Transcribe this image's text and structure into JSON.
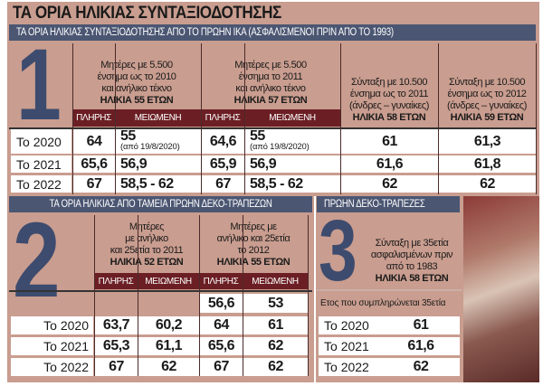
{
  "title": "ΤΑ ΟΡΙΑ ΗΛΙΚΙΑΣ ΣΥΝΤΑΞΙΟΔΟΤΗΣΗΣ",
  "colors": {
    "background": "#c99d8f",
    "navy": "#4b5672",
    "maroon": "#6b1f24",
    "big_number": "#3d4b6e"
  },
  "section1": {
    "heading": "ΤΑ ΟΡΙΑ ΗΛΙΚΙΑΣ ΣΥΝΤΑΞΙΟΔΟΤΗΣΗΣ ΑΠΟ ΤΟ ΠΡΩΗΝ ΙΚΑ (ΑΣΦΑΛΙΣΜΕΝΟΙ ΠΡΙΝ ΑΠΟ ΤΟ 1993)",
    "number": "1",
    "groups": [
      {
        "lines": [
          "Μητέρες με 5.500",
          "ένσημα ως το 2010",
          "και ανήλικο τέκνο"
        ],
        "age": "ΗΛΙΚΙΑ 55 ΕΤΩΝ"
      },
      {
        "lines": [
          "Μητέρες με 5.500",
          "ένσημα το 2011",
          "και ανήλικο τέκνο"
        ],
        "age": "ΗΛΙΚΙΑ 57 ΕΤΩΝ"
      },
      {
        "lines": [
          "Σύνταξη με 10.500",
          "ένσημα ως το 2011",
          "(άνδρες – γυναίκες)"
        ],
        "age": "ΗΛΙΚΙΑ 58 ΕΤΩΝ"
      },
      {
        "lines": [
          "Σύνταξη με 10.500",
          "ένσημα ως το 2012",
          "(άνδρες – γυναίκες)"
        ],
        "age": "ΗΛΙΚΙΑ 59 ΕΤΩΝ"
      }
    ],
    "subheaders": [
      "ΠΛΗΡΗΣ",
      "ΜΕΙΩΜΕΝΗ",
      "ΠΛΗΡΗΣ",
      "ΜΕΙΩΜΕΝΗ"
    ],
    "rows": [
      {
        "label": "Το 2020",
        "values": [
          "64",
          "55",
          "64,6",
          "55",
          "61",
          "61,3"
        ],
        "notes": [
          "",
          "(από 19/8/2020)",
          "",
          "(από 19/8/2020)",
          "",
          ""
        ]
      },
      {
        "label": "Το 2021",
        "values": [
          "65,6",
          "56,9",
          "65,9",
          "56,9",
          "61,6",
          "61,8"
        ],
        "notes": [
          "",
          "",
          "",
          "",
          "",
          ""
        ]
      },
      {
        "label": "Το 2022",
        "values": [
          "67",
          "58,5 - 62",
          "67",
          "58,5 - 62",
          "62",
          "62"
        ],
        "notes": [
          "",
          "",
          "",
          "",
          "",
          ""
        ]
      }
    ]
  },
  "section2": {
    "heading": "ΤΑ ΟΡΙΑ ΗΛΙΚΙΑΣ ΑΠΟ ΤΑΜΕΙΑ ΠΡΩΗΝ ΔΕΚΟ-ΤΡΑΠΕΖΩΝ",
    "number": "2",
    "groups": [
      {
        "lines": [
          "Μητέρες",
          "με ανήλικο",
          "και 25ετία το 2011"
        ],
        "age": "ΗΛΙΚΙΑ 52 ΕΤΩΝ"
      },
      {
        "lines": [
          "Μητέρες με",
          "ανήλικο και 25ετία",
          "το 2012"
        ],
        "age": "ΗΛΙΚΙΑ 55 ΕΤΩΝ"
      }
    ],
    "subheaders": [
      "ΠΛΗΡΗΣ",
      "ΜΕΙΩΜΕΝΗ",
      "ΠΛΗΡΗΣ",
      "ΜΕΙΩΜΕΝΗ"
    ],
    "first_row": [
      "56,6",
      "53"
    ],
    "rows": [
      {
        "label": "Το 2020",
        "values": [
          "63,7",
          "60,2",
          "64",
          "61"
        ]
      },
      {
        "label": "Το 2021",
        "values": [
          "65,3",
          "61,1",
          "65,6",
          "62"
        ]
      },
      {
        "label": "Το 2022",
        "values": [
          "67",
          "62",
          "67",
          "62"
        ]
      }
    ]
  },
  "section3": {
    "heading": "ΠΡΩΗΝ ΔΕΚΟ-ΤΡΑΠΕΖΕΣ",
    "number": "3",
    "lines": [
      "Σύνταξη με 35ετία",
      "ασφαλισμένων πριν",
      "από το 1983"
    ],
    "age": "ΗΛΙΚΙΑ 58 ΕΤΩΝ",
    "note": "Ετος που συμπληρώνεται 35ετία",
    "rows": [
      {
        "label": "Το 2020",
        "value": "61"
      },
      {
        "label": "Το 2021",
        "value": "61,6"
      },
      {
        "label": "Το 2022",
        "value": "62"
      }
    ]
  }
}
